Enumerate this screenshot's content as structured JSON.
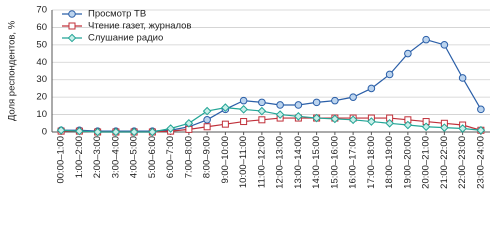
{
  "chart_data": {
    "type": "line",
    "y_label": "Доля респондентов, %",
    "categories": [
      "00:00–1:00",
      "1:00–2:00",
      "2:00–3:00",
      "3:00–4:00",
      "4:00–5:00",
      "5:00–6:00",
      "6:00–7:00",
      "7:00–8:00",
      "8:00–9:00",
      "9:00–10:00",
      "10:00–11:00",
      "11:00–12:00",
      "12:00–13:00",
      "13:00–14:00",
      "14:00–15:00",
      "15:00–16:00",
      "16:00–17:00",
      "17:00–18:00",
      "18:00–19:00",
      "19:00–20:00",
      "20:00–21:00",
      "21:00–22:00",
      "22:00–23:00",
      "23:00–24:00"
    ],
    "series": [
      {
        "name": "Просмотр ТВ",
        "color": "#2b5fa8",
        "marker": "circle",
        "values": [
          1,
          1,
          0.5,
          0.5,
          0.5,
          0.5,
          1,
          3,
          7,
          13,
          18,
          17,
          15.5,
          15.5,
          17,
          18,
          20,
          25,
          33,
          45,
          53,
          50,
          31,
          13
        ]
      },
      {
        "name": "Чтение газет, журналов",
        "color": "#c0303a",
        "marker": "square",
        "values": [
          0.5,
          0.5,
          0,
          0,
          0,
          0,
          0.5,
          1.5,
          3,
          4.5,
          6,
          7,
          8,
          8,
          8,
          8,
          8,
          8,
          8,
          7,
          6,
          5,
          4,
          1
        ]
      },
      {
        "name": "Слушание радио",
        "color": "#23a596",
        "marker": "diamond",
        "values": [
          1,
          0.5,
          0,
          0,
          0,
          0,
          2,
          5,
          12,
          14,
          13,
          12,
          10,
          9,
          8,
          7.5,
          7,
          6,
          5,
          4,
          3,
          2.5,
          2,
          1
        ]
      }
    ],
    "ylim": [
      0,
      70
    ],
    "yticks": [
      0,
      10,
      20,
      30,
      40,
      50,
      60,
      70
    ],
    "grid": true,
    "legend": "top-left"
  }
}
